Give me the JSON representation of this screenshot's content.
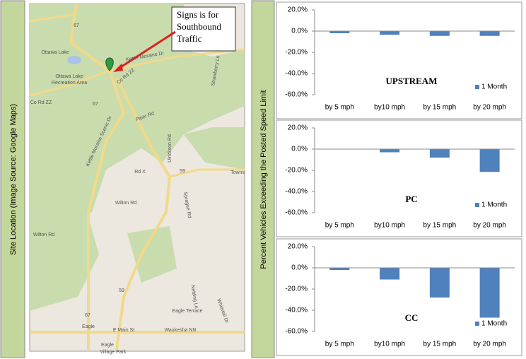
{
  "side_labels": {
    "left": "Site Location (Image Source: Google Maps)",
    "right": "Percent Vehicles Exceeding the Posted Speed Limit"
  },
  "map": {
    "callout": [
      "Signs is for",
      "Southbound",
      "Traffic"
    ],
    "labels": [
      "Ottawa Lake",
      "Ottawa Lake",
      "Recreation Area",
      "Co Rd ZZ",
      "Co Rd ZZ",
      "Kettle Moraine Dr",
      "Kettle Moraine Scenic Dr",
      "Piper Rd",
      "Strawberry Ln",
      "Rd X",
      "Wilton Rd",
      "Wilton Rd",
      "Sprague Rd",
      "Ulrickson Rd",
      "Towns",
      "Eagle",
      "E Main St",
      "Waukesha NN",
      "Eagle Terrace",
      "Nettling Ln",
      "Whitetail Dr",
      "Eagle",
      "Village Park",
      "67",
      "67",
      "67",
      "59",
      "59"
    ]
  },
  "chart_data": [
    {
      "type": "bar",
      "title": "UPSTREAM",
      "categories": [
        "by 5 mph",
        "by10 mph",
        "by 15 mph",
        "by 20 mph"
      ],
      "series": [
        {
          "name": "1 Month",
          "color": "#4f81bd",
          "values": [
            -2,
            -3.5,
            -4.5,
            -4.5
          ]
        }
      ],
      "ylim": [
        -60,
        20
      ],
      "yticks": [
        {
          "value": -60,
          "label": "-60.0%"
        },
        {
          "value": -40,
          "label": "-40.0%"
        },
        {
          "value": -20,
          "label": "-20.0%"
        },
        {
          "value": 0,
          "label": "0.0%"
        },
        {
          "value": 20,
          "label": "20.0%"
        }
      ],
      "legend": "right"
    },
    {
      "type": "bar",
      "title": "PC",
      "categories": [
        "by 5 mph",
        "by10 mph",
        "by 15 mph",
        "by 20 mph"
      ],
      "series": [
        {
          "name": "1 Month",
          "color": "#4f81bd",
          "values": [
            0,
            -3,
            -8,
            -21.5
          ]
        }
      ],
      "ylim": [
        -60,
        20
      ],
      "yticks": [
        {
          "value": -60,
          "label": "-60.0%"
        },
        {
          "value": -40,
          "label": "-40.0%"
        },
        {
          "value": -20,
          "label": "-20.0%"
        },
        {
          "value": 0,
          "label": "0.0%"
        },
        {
          "value": 20,
          "label": "20.0%"
        }
      ],
      "legend": "right"
    },
    {
      "type": "bar",
      "title": "CC",
      "categories": [
        "by 5 mph",
        "by10 mph",
        "by 15 mph",
        "by 20 mph"
      ],
      "series": [
        {
          "name": "1 Month",
          "color": "#4f81bd",
          "values": [
            -2,
            -11,
            -28,
            -47
          ]
        }
      ],
      "ylim": [
        -60,
        20
      ],
      "yticks": [
        {
          "value": -60,
          "label": "-60.0%"
        },
        {
          "value": -40,
          "label": "-40.0%"
        },
        {
          "value": -20,
          "label": "-20.0%"
        },
        {
          "value": 0,
          "label": "0.0%"
        },
        {
          "value": 20,
          "label": "20.0%"
        }
      ],
      "legend": "right"
    }
  ]
}
